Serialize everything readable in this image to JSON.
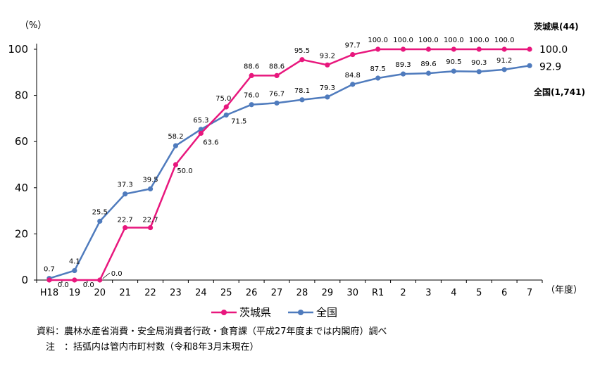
{
  "chart_data": {
    "type": "line",
    "y_unit_label": "（%）",
    "x_unit_label": "（年度）",
    "ylim": [
      0,
      100
    ],
    "yticks": [
      0,
      20,
      40,
      60,
      80,
      100
    ],
    "categories": [
      "H18",
      "19",
      "20",
      "21",
      "22",
      "23",
      "24",
      "25",
      "26",
      "27",
      "28",
      "29",
      "30",
      "R1",
      "2",
      "3",
      "4",
      "5",
      "6",
      "7"
    ],
    "series": [
      {
        "name": "茨城県",
        "color": "#e8177d",
        "values": [
          0.0,
          0.0,
          0.0,
          22.7,
          22.7,
          50.0,
          63.6,
          75.0,
          88.6,
          88.6,
          95.5,
          93.2,
          97.7,
          100.0,
          100.0,
          100.0,
          100.0,
          100.0,
          100.0,
          100.0
        ],
        "value_labels": [
          "",
          "0.0",
          "0.0",
          "22.7",
          "22.7",
          "50.0",
          "63.6",
          "75.0",
          "88.6",
          "88.6",
          "95.5",
          "93.2",
          "97.7",
          "100.0",
          "100.0",
          "100.0",
          "100.0",
          "100.0",
          "100.0",
          ""
        ],
        "end_label": "100.0",
        "end_tag": "茨城県(44)"
      },
      {
        "name": "全国",
        "color": "#4f7bbd",
        "values": [
          0.7,
          4.1,
          25.5,
          37.3,
          39.5,
          58.2,
          65.3,
          71.5,
          76.0,
          76.7,
          78.1,
          79.3,
          84.8,
          87.5,
          89.3,
          89.6,
          90.5,
          90.3,
          91.2,
          92.9
        ],
        "value_labels": [
          "0.7",
          "4.1",
          "25.5",
          "37.3",
          "39.5",
          "58.2",
          "65.3",
          "71.5",
          "76.0",
          "76.7",
          "78.1",
          "79.3",
          "84.8",
          "87.5",
          "89.3",
          "89.6",
          "90.5",
          "90.3",
          "91.2",
          ""
        ],
        "end_label": "92.9",
        "end_tag": "全国(1,741)"
      }
    ],
    "callout_label": "0.0",
    "legend_position": "bottom",
    "grid": false
  },
  "notes": [
    "資料：農林水産省消費・安全局消費者行政・食育課（平成27年度までは内閣府）調べ",
    "　注　：括弧内は管内市町村数（令和8年3月末現在）"
  ]
}
